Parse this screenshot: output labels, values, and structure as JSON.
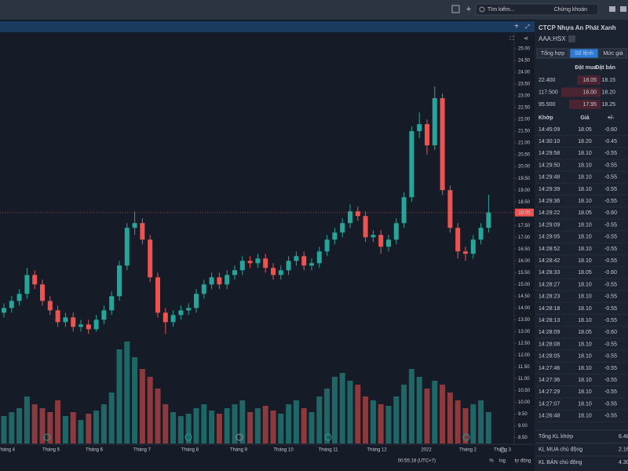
{
  "topbar": {
    "search_placeholder": "Tìm kiếm...",
    "search_scope": "Chứng khoán"
  },
  "chart": {
    "type": "candlestick",
    "ylim": [
      8.25,
      25.5
    ],
    "yticks": [
      {
        "value": 25,
        "label": "25.00"
      },
      {
        "value": 24.5,
        "label": "24.50"
      },
      {
        "value": 24,
        "label": "24.00"
      },
      {
        "value": 23.5,
        "label": "23.50"
      },
      {
        "value": 23,
        "label": "23.00"
      },
      {
        "value": 22.5,
        "label": "22.50"
      },
      {
        "value": 22,
        "label": "22.00"
      },
      {
        "value": 21.5,
        "label": "21.50"
      },
      {
        "value": 21,
        "label": "21.00"
      },
      {
        "value": 20.5,
        "label": "20.50"
      },
      {
        "value": 20,
        "label": "20.00"
      },
      {
        "value": 19.5,
        "label": "19.50"
      },
      {
        "value": 19,
        "label": "19.00"
      },
      {
        "value": 18.5,
        "label": "18.50"
      },
      {
        "value": 18,
        "label": "18.00"
      },
      {
        "value": 17.5,
        "label": "17.50"
      },
      {
        "value": 17,
        "label": "17.00"
      },
      {
        "value": 16.5,
        "label": "16.50"
      },
      {
        "value": 16,
        "label": "16.00"
      },
      {
        "value": 15.5,
        "label": "15.50"
      },
      {
        "value": 15,
        "label": "15.00"
      },
      {
        "value": 14.5,
        "label": "14.50"
      },
      {
        "value": 14,
        "label": "14.00"
      },
      {
        "value": 13.5,
        "label": "13.50"
      },
      {
        "value": 13,
        "label": "13.00"
      },
      {
        "value": 12.5,
        "label": "12.50"
      },
      {
        "value": 12,
        "label": "12.00"
      },
      {
        "value": 11.5,
        "label": "11.50"
      },
      {
        "value": 11,
        "label": "11.00"
      },
      {
        "value": 10.5,
        "label": "10.50"
      },
      {
        "value": 10,
        "label": "10.00"
      },
      {
        "value": 9.5,
        "label": "9.50"
      },
      {
        "value": 9,
        "label": "9.00"
      },
      {
        "value": 8.5,
        "label": "8.50"
      }
    ],
    "x_labels": [
      "Tháng 4",
      "Tháng 5",
      "Tháng 6",
      "Tháng 7",
      "Tháng 8",
      "Tháng 9",
      "Tháng 10",
      "Tháng 11",
      "Tháng 12",
      "2022",
      "Tháng 2",
      "Tháng 3"
    ],
    "last_price": {
      "value": 18.05,
      "label": "18.05"
    },
    "up_color": "#26a69a",
    "down_color": "#ef5350",
    "candles": [
      [
        13.8,
        14.2,
        13.6,
        14.0
      ],
      [
        14.0,
        14.5,
        13.8,
        14.3
      ],
      [
        14.3,
        14.8,
        14.1,
        14.6
      ],
      [
        14.6,
        15.7,
        14.4,
        15.4
      ],
      [
        15.4,
        15.6,
        14.8,
        15.0
      ],
      [
        15.0,
        15.2,
        14.1,
        14.3
      ],
      [
        14.3,
        14.5,
        13.7,
        13.9
      ],
      [
        13.9,
        14.1,
        13.2,
        13.4
      ],
      [
        13.4,
        13.8,
        13.2,
        13.6
      ],
      [
        13.6,
        13.8,
        13.0,
        13.2
      ],
      [
        13.2,
        13.5,
        13.0,
        13.3
      ],
      [
        13.3,
        13.5,
        12.9,
        13.1
      ],
      [
        13.1,
        13.7,
        13.0,
        13.5
      ],
      [
        13.5,
        14.1,
        13.3,
        13.9
      ],
      [
        13.9,
        14.7,
        13.7,
        14.5
      ],
      [
        14.5,
        16.0,
        14.3,
        15.8
      ],
      [
        15.8,
        17.6,
        15.6,
        17.4
      ],
      [
        17.4,
        18.1,
        17.1,
        17.6
      ],
      [
        17.6,
        17.8,
        16.7,
        16.9
      ],
      [
        16.9,
        17.1,
        15.1,
        15.3
      ],
      [
        15.3,
        15.5,
        13.6,
        13.8
      ],
      [
        13.8,
        14.0,
        12.9,
        13.4
      ],
      [
        13.4,
        13.9,
        13.2,
        13.7
      ],
      [
        13.7,
        14.1,
        13.5,
        13.9
      ],
      [
        13.9,
        14.2,
        13.7,
        14.0
      ],
      [
        14.0,
        14.8,
        13.8,
        14.6
      ],
      [
        14.6,
        15.2,
        14.4,
        15.0
      ],
      [
        15.0,
        15.5,
        14.8,
        15.3
      ],
      [
        15.3,
        15.5,
        14.8,
        15.0
      ],
      [
        15.0,
        15.6,
        14.8,
        15.4
      ],
      [
        15.4,
        15.8,
        15.2,
        15.6
      ],
      [
        15.6,
        16.2,
        15.4,
        16.0
      ],
      [
        16.0,
        16.2,
        15.7,
        15.9
      ],
      [
        15.9,
        16.3,
        15.7,
        16.1
      ],
      [
        16.1,
        16.3,
        15.5,
        15.7
      ],
      [
        15.7,
        15.9,
        15.2,
        15.4
      ],
      [
        15.4,
        15.8,
        15.2,
        15.6
      ],
      [
        15.6,
        16.2,
        15.4,
        16.0
      ],
      [
        16.0,
        16.4,
        15.8,
        16.2
      ],
      [
        16.2,
        16.4,
        15.6,
        15.8
      ],
      [
        15.8,
        16.1,
        15.6,
        15.9
      ],
      [
        15.9,
        16.6,
        15.7,
        16.4
      ],
      [
        16.4,
        17.1,
        16.2,
        16.9
      ],
      [
        16.9,
        17.4,
        16.7,
        17.2
      ],
      [
        17.2,
        17.8,
        17.0,
        17.6
      ],
      [
        17.6,
        18.4,
        17.4,
        18.1
      ],
      [
        18.1,
        18.3,
        17.7,
        17.9
      ],
      [
        17.9,
        18.1,
        16.8,
        17.0
      ],
      [
        17.0,
        17.3,
        16.8,
        17.1
      ],
      [
        17.1,
        17.3,
        16.3,
        16.6
      ],
      [
        16.6,
        17.1,
        16.4,
        16.9
      ],
      [
        16.9,
        17.8,
        16.7,
        17.6
      ],
      [
        17.6,
        18.9,
        17.4,
        18.7
      ],
      [
        18.7,
        21.7,
        18.5,
        21.5
      ],
      [
        21.5,
        22.3,
        21.2,
        21.8
      ],
      [
        21.8,
        22.0,
        20.5,
        20.9
      ],
      [
        20.9,
        23.4,
        20.7,
        22.9
      ],
      [
        22.9,
        23.1,
        18.8,
        19.0
      ],
      [
        19.0,
        19.2,
        17.2,
        17.4
      ],
      [
        17.4,
        17.6,
        16.1,
        16.4
      ],
      [
        16.4,
        16.6,
        16.0,
        16.3
      ],
      [
        16.3,
        17.1,
        16.1,
        16.9
      ],
      [
        16.9,
        17.6,
        16.7,
        17.4
      ],
      [
        17.4,
        18.8,
        17.2,
        18.05
      ]
    ],
    "volumes": [
      35,
      40,
      45,
      60,
      50,
      45,
      40,
      55,
      35,
      40,
      30,
      38,
      42,
      50,
      65,
      120,
      130,
      110,
      95,
      85,
      70,
      50,
      40,
      35,
      38,
      45,
      50,
      42,
      38,
      45,
      50,
      55,
      40,
      45,
      48,
      42,
      38,
      50,
      55,
      45,
      40,
      60,
      70,
      85,
      90,
      80,
      75,
      60,
      55,
      50,
      48,
      60,
      75,
      95,
      85,
      70,
      80,
      75,
      65,
      55,
      45,
      50,
      55,
      40
    ],
    "status": {
      "time": "00:55:18 (UTC+7)",
      "percent": "%",
      "log": "log",
      "auto": "tự động"
    }
  },
  "panel": {
    "title": "CTCP Nhựa An Phát Xanh",
    "symbol": "AAA:HSX",
    "tabs": [
      "Tổng hợp",
      "Sổ lệnh",
      "Mức giá"
    ],
    "book_header": [
      "Đặt mua",
      "Đặt bán"
    ],
    "book_rows": [
      [
        "22.400",
        "18.05",
        "18.15"
      ],
      [
        "117.500",
        "18.00",
        "18.20"
      ],
      [
        "95.500",
        "17.95",
        "18.25"
      ]
    ],
    "trade_header": [
      "Khớp",
      "Giá",
      "+/-"
    ],
    "trades": [
      [
        "14:45:09",
        "18.05",
        "-0.60"
      ],
      [
        "14:30:10",
        "18.20",
        "-0.45"
      ],
      [
        "14:29:58",
        "18.10",
        "-0.55"
      ],
      [
        "14:29:50",
        "18.10",
        "-0.55"
      ],
      [
        "14:29:48",
        "18.10",
        "-0.55"
      ],
      [
        "14:29:39",
        "18.10",
        "-0.55"
      ],
      [
        "14:29:36",
        "18.10",
        "-0.55"
      ],
      [
        "14:29:22",
        "18.05",
        "-0.60"
      ],
      [
        "14:29:09",
        "18.10",
        "-0.55"
      ],
      [
        "14:29:05",
        "18.10",
        "-0.55"
      ],
      [
        "14:28:52",
        "18.10",
        "-0.55"
      ],
      [
        "14:28:42",
        "18.10",
        "-0.55"
      ],
      [
        "14:28:33",
        "18.05",
        "-0.60"
      ],
      [
        "14:28:27",
        "18.10",
        "-0.55"
      ],
      [
        "14:28:23",
        "18.10",
        "-0.55"
      ],
      [
        "14:28:18",
        "18.10",
        "-0.55"
      ],
      [
        "14:28:13",
        "18.10",
        "-0.55"
      ],
      [
        "14:28:09",
        "18.05",
        "-0.60"
      ],
      [
        "14:28:08",
        "18.10",
        "-0.55"
      ],
      [
        "14:28:05",
        "18.10",
        "-0.55"
      ],
      [
        "14:27:46",
        "18.10",
        "-0.55"
      ],
      [
        "14:27:36",
        "18.10",
        "-0.55"
      ],
      [
        "14:27:29",
        "18.10",
        "-0.55"
      ],
      [
        "14:27:07",
        "18.10",
        "-0.55"
      ],
      [
        "14:26:48",
        "18.10",
        "-0.55"
      ]
    ],
    "summary": [
      [
        "Tổng KL khớp",
        "6.48"
      ],
      [
        "KL MUA chủ động",
        "2.16"
      ],
      [
        "KL BÁN chủ động",
        "4.30"
      ]
    ]
  }
}
